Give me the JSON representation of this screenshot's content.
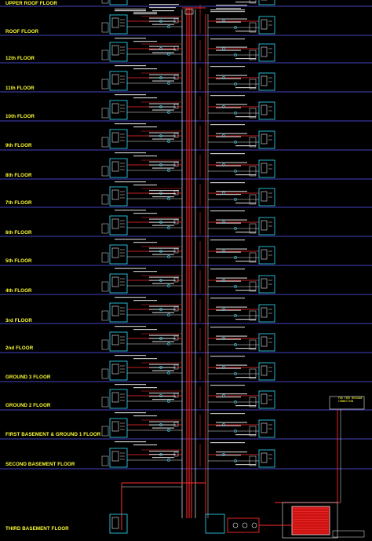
{
  "floors": [
    {
      "label": "UPPER ROOF FLOOR"
    },
    {
      "label": "ROOF FLOOR"
    },
    {
      "label": "12th FLOOR"
    },
    {
      "label": "11th FLOOR"
    },
    {
      "label": "10th FLOOR"
    },
    {
      "label": "9th FLOOR"
    },
    {
      "label": "8th FLOOR"
    },
    {
      "label": "7th FLOOR"
    },
    {
      "label": "6th FLOOR"
    },
    {
      "label": "5th FLOOR"
    },
    {
      "label": "4th FLOOR"
    },
    {
      "label": "3rd FLOOR"
    },
    {
      "label": "2nd FLOOR"
    },
    {
      "label": "GROUND 3 FLOOR"
    },
    {
      "label": "GROUND 2 FLOOR"
    },
    {
      "label": "FIRST BASEMENT & GROUND 1 FLOOR"
    },
    {
      "label": "SECOND BASEMENT FLOOR"
    },
    {
      "label": "THIRD BASEMENT FLOOR"
    }
  ],
  "annotations": {
    "fill_connection": "FOR FIRE BRIGADE CONNECTION"
  },
  "colors": {
    "background": "#000000",
    "floor_line": "#5a5aff",
    "label": "#ffff33",
    "riser_red": "#ff2a2a",
    "riser_white": "#e8e8e8",
    "pipe_cyan": "#33e0ff",
    "text_gray": "#bfbfbf",
    "tank_red": "#cc1111"
  }
}
